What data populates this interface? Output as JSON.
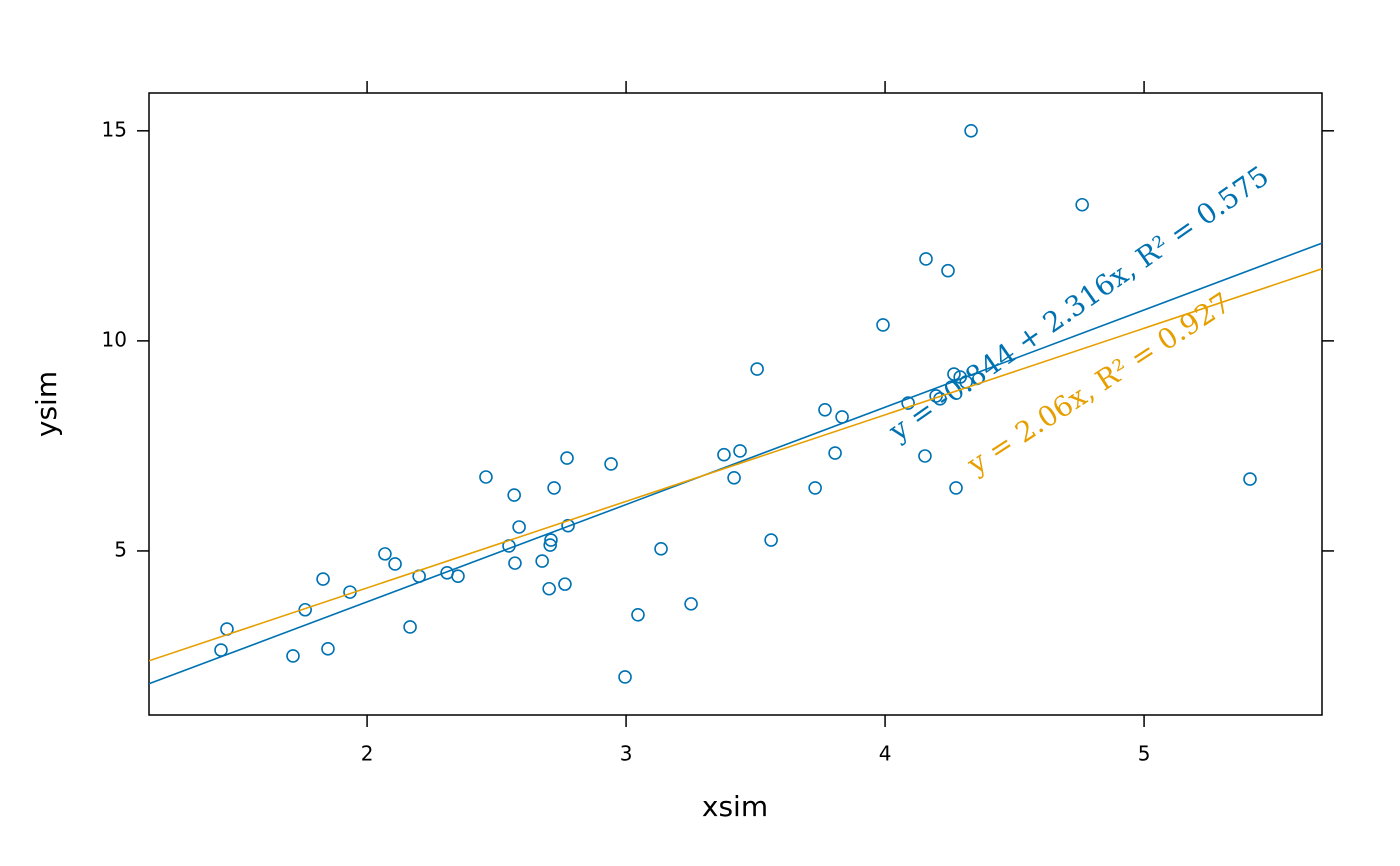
{
  "chart_data": {
    "type": "scatter",
    "x_label": "xsim",
    "y_label": "ysim",
    "xlim": [
      1.158,
      5.687
    ],
    "ylim": [
      1.095,
      15.9
    ],
    "xticks": [
      2,
      3,
      4,
      5
    ],
    "yticks": [
      5,
      10,
      15
    ],
    "series": [
      {
        "color": "#0072b2",
        "x": [
          1.436,
          1.459,
          1.714,
          1.761,
          1.83,
          1.849,
          1.934,
          2.069,
          2.108,
          2.166,
          2.201,
          2.309,
          2.351,
          2.459,
          2.548,
          2.568,
          2.571,
          2.587,
          2.676,
          2.703,
          2.707,
          2.71,
          2.722,
          2.764,
          2.772,
          2.776,
          2.942,
          2.996,
          3.046,
          3.135,
          3.251,
          3.378,
          3.417,
          3.44,
          3.506,
          3.56,
          3.73,
          3.768,
          3.807,
          3.834,
          3.992,
          4.089,
          4.154,
          4.158,
          4.197,
          4.212,
          4.243,
          4.266,
          4.274,
          4.29,
          4.313,
          4.332,
          4.761,
          5.409
        ],
        "values": [
          2.64,
          3.14,
          2.5,
          3.6,
          4.33,
          2.67,
          4.02,
          4.93,
          4.69,
          3.19,
          4.4,
          4.48,
          4.4,
          6.76,
          5.12,
          6.33,
          4.71,
          5.57,
          4.76,
          4.1,
          5.14,
          5.26,
          6.5,
          4.21,
          7.21,
          5.6,
          7.07,
          2.0,
          3.48,
          5.05,
          3.74,
          7.29,
          6.74,
          7.38,
          9.33,
          5.26,
          6.5,
          8.36,
          7.33,
          8.19,
          10.38,
          8.52,
          7.26,
          11.95,
          8.69,
          8.62,
          11.67,
          9.21,
          6.5,
          9.14,
          9.02,
          15.0,
          13.24,
          6.71
        ]
      }
    ],
    "lines": [
      {
        "color": "#0072b2",
        "intercept": -0.844,
        "slope": 2.316,
        "label": "y = -0.844 + 2.316x, R² = 0.575"
      },
      {
        "color": "#e69f00",
        "intercept": 0,
        "slope": 2.06,
        "label": "y = 2.06x, R² = 0.927"
      }
    ]
  }
}
